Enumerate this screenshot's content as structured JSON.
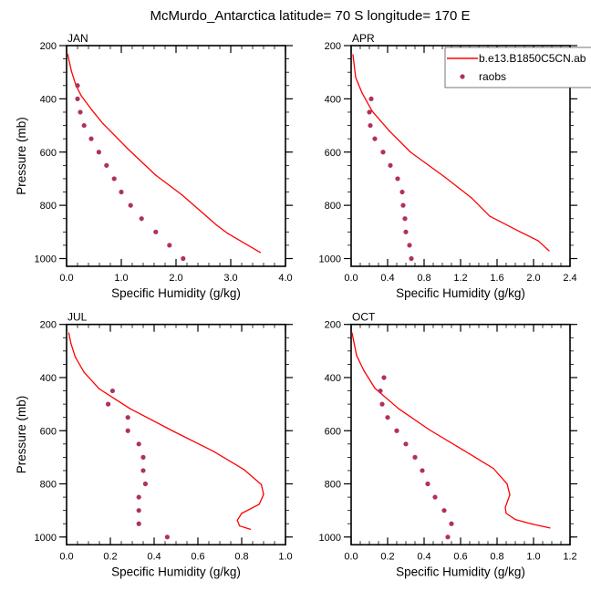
{
  "chart_data": {
    "title": "McMurdo_Antarctica  latitude= 70 S longitude= 170 E",
    "type": "line",
    "legend": {
      "placement": "top-right",
      "entries": [
        {
          "label": "b.e13.B1850C5CN.ab",
          "style": "line",
          "color": "#ff0000"
        },
        {
          "label": "raobs",
          "style": "marker",
          "color": "#b03060"
        }
      ]
    },
    "panels": [
      {
        "label": "JAN",
        "xlabel": "Specific Humidity (g/kg)",
        "ylabel": "Pressure (mb)",
        "xlim": [
          0,
          4.0
        ],
        "ylim": [
          200,
          1020
        ],
        "y_reversed": true,
        "xticks": [
          0.0,
          1.0,
          2.0,
          3.0,
          4.0
        ],
        "xtick_labels": [
          "0.0",
          "1.0",
          "2.0",
          "3.0",
          "4.0"
        ],
        "x_minor_step": 0.2,
        "yticks": [
          200,
          400,
          600,
          800,
          1000
        ],
        "ytick_labels": [
          "200",
          "400",
          "600",
          "800",
          "1000"
        ],
        "y_minor_step": 50,
        "series": [
          {
            "name": "b.e13.B1850C5CN.ab",
            "type": "line",
            "x": [
              0.02,
              0.09,
              0.17,
              0.27,
              0.47,
              0.66,
              1.12,
              1.63,
              2.11,
              2.74,
              2.94,
              3.54
            ],
            "y": [
              232,
              297,
              349,
              389,
              444,
              492,
              588,
              687,
              761,
              874,
              905,
              977
            ]
          },
          {
            "name": "raobs",
            "type": "scatter",
            "x": [
              0.2,
              0.2,
              0.25,
              0.32,
              0.45,
              0.59,
              0.73,
              0.87,
              1.0,
              1.17,
              1.37,
              1.63,
              1.88,
              2.13
            ],
            "y": [
              350,
              400,
              450,
              500,
              550,
              600,
              650,
              700,
              750,
              800,
              850,
              900,
              950,
              1000
            ]
          }
        ]
      },
      {
        "label": "APR",
        "xlabel": "Specific Humidity (g/kg)",
        "ylabel": "",
        "xlim": [
          0,
          2.4
        ],
        "ylim": [
          200,
          1020
        ],
        "y_reversed": true,
        "xticks": [
          0.0,
          0.4,
          0.8,
          1.2,
          1.6,
          2.0,
          2.4
        ],
        "xtick_labels": [
          "0.0",
          "0.4",
          "0.8",
          "1.2",
          "1.6",
          "2.0",
          "2.4"
        ],
        "x_minor_step": 0.1,
        "yticks": [
          200,
          400,
          600,
          800,
          1000
        ],
        "ytick_labels": [
          "200",
          "400",
          "600",
          "800",
          "1000"
        ],
        "y_minor_step": 50,
        "series": [
          {
            "name": "b.e13.B1850C5CN.ab",
            "type": "line",
            "x": [
              0.02,
              0.05,
              0.12,
              0.23,
              0.42,
              0.65,
              1.02,
              1.32,
              1.52,
              1.85,
              2.05,
              2.17
            ],
            "y": [
              234,
              320,
              378,
              446,
              521,
              600,
              692,
              772,
              841,
              899,
              933,
              971
            ]
          },
          {
            "name": "raobs",
            "type": "scatter",
            "x": [
              0.22,
              0.2,
              0.21,
              0.26,
              0.35,
              0.43,
              0.51,
              0.56,
              0.57,
              0.59,
              0.6,
              0.64,
              0.66
            ],
            "y": [
              400,
              450,
              500,
              550,
              600,
              650,
              700,
              750,
              800,
              850,
              900,
              950,
              1000
            ]
          }
        ]
      },
      {
        "label": "JUL",
        "xlabel": "Specific Humidity (g/kg)",
        "ylabel": "Pressure (mb)",
        "xlim": [
          0,
          1.0
        ],
        "ylim": [
          200,
          1020
        ],
        "y_reversed": true,
        "xticks": [
          0.0,
          0.2,
          0.4,
          0.6,
          0.8,
          1.0
        ],
        "xtick_labels": [
          "0.0",
          "0.2",
          "0.4",
          "0.6",
          "0.8",
          "1.0"
        ],
        "x_minor_step": 0.05,
        "yticks": [
          200,
          400,
          600,
          800,
          1000
        ],
        "ytick_labels": [
          "200",
          "400",
          "600",
          "800",
          "1000"
        ],
        "y_minor_step": 50,
        "series": [
          {
            "name": "b.e13.B1850C5CN.ab",
            "type": "line",
            "x": [
              0.01,
              0.02,
              0.04,
              0.08,
              0.15,
              0.29,
              0.49,
              0.67,
              0.81,
              0.89,
              0.9,
              0.88,
              0.8,
              0.78,
              0.79,
              0.84
            ],
            "y": [
              232,
              272,
              323,
              380,
              443,
              517,
              603,
              677,
              746,
              803,
              840,
              877,
              911,
              937,
              958,
              971
            ]
          },
          {
            "name": "raobs",
            "type": "scatter",
            "x": [
              0.21,
              0.19,
              0.28,
              0.28,
              0.33,
              0.35,
              0.35,
              0.36,
              0.33,
              0.33,
              0.33,
              0.46
            ],
            "y": [
              450,
              500,
              550,
              600,
              650,
              700,
              750,
              800,
              850,
              900,
              950,
              1000
            ]
          }
        ]
      },
      {
        "label": "OCT",
        "xlabel": "Specific Humidity (g/kg)",
        "ylabel": "",
        "xlim": [
          0,
          1.2
        ],
        "ylim": [
          200,
          1020
        ],
        "y_reversed": true,
        "xticks": [
          0.0,
          0.2,
          0.4,
          0.6,
          0.8,
          1.0,
          1.2
        ],
        "xtick_labels": [
          "0.0",
          "0.2",
          "0.4",
          "0.6",
          "0.8",
          "1.0",
          "1.2"
        ],
        "x_minor_step": 0.05,
        "yticks": [
          200,
          400,
          600,
          800,
          1000
        ],
        "ytick_labels": [
          "200",
          "400",
          "600",
          "800",
          "1000"
        ],
        "y_minor_step": 50,
        "series": [
          {
            "name": "b.e13.B1850C5CN.ab",
            "type": "line",
            "x": [
              0.005,
              0.03,
              0.07,
              0.13,
              0.26,
              0.43,
              0.61,
              0.78,
              0.855,
              0.87,
              0.845,
              0.85,
              0.9,
              0.99,
              1.09
            ],
            "y": [
              232,
              317,
              374,
              440,
              517,
              597,
              671,
              742,
              800,
              841,
              889,
              911,
              934,
              951,
              966
            ]
          },
          {
            "name": "raobs",
            "type": "scatter",
            "x": [
              0.18,
              0.16,
              0.17,
              0.2,
              0.25,
              0.3,
              0.35,
              0.39,
              0.42,
              0.46,
              0.51,
              0.55,
              0.53
            ],
            "y": [
              400,
              450,
              500,
              550,
              600,
              650,
              700,
              750,
              800,
              850,
              900,
              950,
              1000
            ]
          }
        ]
      }
    ]
  }
}
